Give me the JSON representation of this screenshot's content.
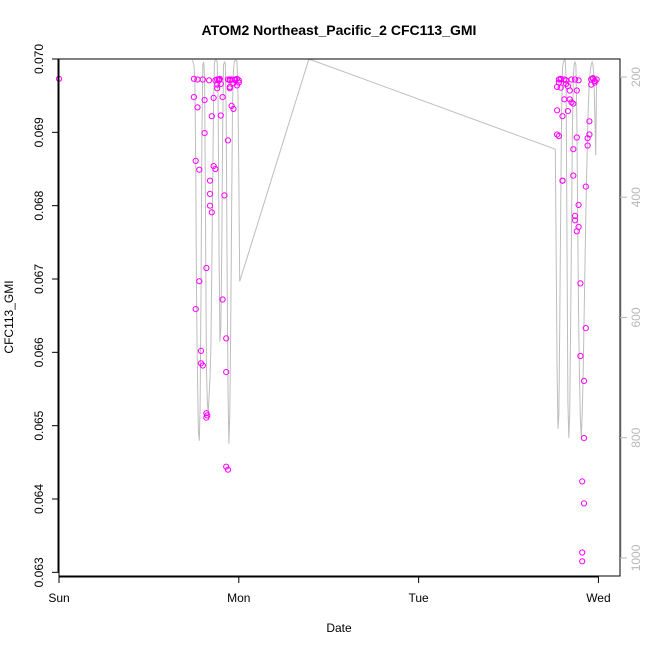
{
  "chart_data": {
    "type": "scatter",
    "title": "ATOM2 Northeast_Pacific_2 CFC113_GMI",
    "xlabel": "Date",
    "ylabel": "CFC113_GMI",
    "xlim": [
      0,
      3.12
    ],
    "ylim": [
      0.06295,
      0.07
    ],
    "x_ticks": [
      {
        "value": 0,
        "label": "Sun"
      },
      {
        "value": 1,
        "label": "Mon"
      },
      {
        "value": 2,
        "label": "Tue"
      },
      {
        "value": 3,
        "label": "Wed"
      }
    ],
    "y_ticks": [
      {
        "value": 0.063,
        "label": "0.063"
      },
      {
        "value": 0.064,
        "label": "0.064"
      },
      {
        "value": 0.065,
        "label": "0.065"
      },
      {
        "value": 0.066,
        "label": "0.066"
      },
      {
        "value": 0.067,
        "label": "0.067"
      },
      {
        "value": 0.068,
        "label": "0.068"
      },
      {
        "value": 0.069,
        "label": "0.069"
      },
      {
        "value": 0.07,
        "label": "0.070"
      }
    ],
    "y2lim": [
      1030,
      170
    ],
    "y2_ticks": [
      {
        "value": 200,
        "label": "200"
      },
      {
        "value": 400,
        "label": "400"
      },
      {
        "value": 600,
        "label": "600"
      },
      {
        "value": 800,
        "label": "800"
      },
      {
        "value": 1000,
        "label": "1000"
      }
    ],
    "colors": {
      "points": "#ff00ff",
      "pressure_line": "#bdbdbd",
      "axis": "#000000",
      "right_axis": "#b8b8b8"
    },
    "series": [
      {
        "marker": "open-circle",
        "x": [
          0.0,
          0.75,
          0.75,
          0.76,
          0.76,
          0.77,
          0.77,
          0.78,
          0.78,
          0.79,
          0.79,
          0.8,
          0.8,
          0.81,
          0.81,
          0.82,
          0.82,
          0.82,
          0.825,
          0.835,
          0.84,
          0.84,
          0.84,
          0.85,
          0.85,
          0.86,
          0.86,
          0.87,
          0.87,
          0.88,
          0.88,
          0.88,
          0.89,
          0.89,
          0.895,
          0.9,
          0.9,
          0.91,
          0.91,
          0.92,
          0.93,
          0.93,
          0.93,
          0.94,
          0.94,
          0.94,
          0.95,
          0.95,
          0.95,
          0.95,
          0.96,
          0.96,
          0.97,
          0.97,
          0.98,
          0.98,
          0.99,
          0.99,
          1.0,
          1.0,
          2.77,
          2.77,
          2.77,
          2.78,
          2.78,
          2.78,
          2.79,
          2.79,
          2.79,
          2.8,
          2.8,
          2.8,
          2.81,
          2.81,
          2.82,
          2.82,
          2.83,
          2.83,
          2.84,
          2.84,
          2.85,
          2.85,
          2.86,
          2.86,
          2.86,
          2.87,
          2.87,
          2.87,
          2.88,
          2.88,
          2.88,
          2.89,
          2.89,
          2.89,
          2.9,
          2.9,
          2.91,
          2.91,
          2.91,
          2.92,
          2.92,
          2.92,
          2.93,
          2.93,
          2.94,
          2.94,
          2.95,
          2.95,
          2.96,
          2.96,
          2.97,
          2.97,
          2.98,
          2.98,
          2.99
        ],
        "y": [
          0.06973,
          0.06973,
          0.06948,
          0.06861,
          0.06659,
          0.06972,
          0.06934,
          0.06849,
          0.06697,
          0.06602,
          0.06585,
          0.06582,
          0.06972,
          0.06944,
          0.06899,
          0.06715,
          0.06517,
          0.06511,
          0.06514,
          0.06971,
          0.06834,
          0.06816,
          0.068,
          0.06791,
          0.06922,
          0.06947,
          0.06854,
          0.0685,
          0.06971,
          0.06965,
          0.0696,
          0.06972,
          0.06971,
          0.06972,
          0.06973,
          0.06966,
          0.06923,
          0.06948,
          0.06672,
          0.06814,
          0.06573,
          0.06619,
          0.06444,
          0.0644,
          0.06889,
          0.06972,
          0.06962,
          0.06972,
          0.06971,
          0.0696,
          0.06936,
          0.06972,
          0.06967,
          0.06932,
          0.06972,
          0.06971,
          0.06964,
          0.06973,
          0.06971,
          0.06968,
          0.06962,
          0.0693,
          0.06897,
          0.06972,
          0.06968,
          0.06895,
          0.06973,
          0.06961,
          0.06972,
          0.06834,
          0.06834,
          0.06922,
          0.06945,
          0.06972,
          0.06971,
          0.06966,
          0.06963,
          0.06929,
          0.06957,
          0.06945,
          0.06941,
          0.06972,
          0.06939,
          0.06877,
          0.06841,
          0.06972,
          0.06786,
          0.0678,
          0.06765,
          0.06893,
          0.06957,
          0.06771,
          0.06801,
          0.06971,
          0.06694,
          0.06595,
          0.06424,
          0.06327,
          0.06315,
          0.06394,
          0.06483,
          0.06561,
          0.06633,
          0.06826,
          0.06882,
          0.06892,
          0.06897,
          0.06915,
          0.06965,
          0.06972,
          0.06974,
          0.06973,
          0.0697,
          0.06968,
          0.06972
        ]
      },
      {
        "marker": "line",
        "axis": "right",
        "x": [
          0.74,
          0.745,
          0.75,
          0.755,
          0.76,
          0.765,
          0.77,
          0.775,
          0.78,
          0.785,
          0.79,
          0.795,
          0.8,
          0.805,
          0.81,
          0.815,
          0.82,
          0.825,
          0.83,
          0.835,
          0.84,
          0.845,
          0.85,
          0.855,
          0.86,
          0.865,
          0.87,
          0.875,
          0.88,
          0.885,
          0.89,
          0.895,
          0.9,
          0.905,
          0.91,
          0.915,
          0.92,
          0.925,
          0.93,
          0.935,
          0.94,
          0.945,
          0.95,
          0.955,
          0.96,
          0.965,
          0.97,
          0.975,
          0.98,
          0.985,
          0.99,
          0.995,
          1.0,
          1.005,
          1.39,
          2.76,
          2.765,
          2.77,
          2.775,
          2.78,
          2.785,
          2.79,
          2.795,
          2.8,
          2.805,
          2.81,
          2.815,
          2.82,
          2.825,
          2.83,
          2.835,
          2.84,
          2.845,
          2.85,
          2.855,
          2.86,
          2.865,
          2.87,
          2.875,
          2.88,
          2.885,
          2.89,
          2.895,
          2.9,
          2.905,
          2.91,
          2.915,
          2.92,
          2.925,
          2.93,
          2.935,
          2.94,
          2.945,
          2.95,
          2.955,
          2.96,
          2.965,
          2.97,
          2.975,
          2.98,
          2.985,
          2.99
        ],
        "y": [
          172,
          175,
          180,
          200,
          340,
          580,
          700,
          790,
          805,
          750,
          560,
          300,
          180,
          175,
          200,
          430,
          680,
          740,
          760,
          730,
          700,
          650,
          520,
          380,
          240,
          175,
          172,
          172,
          175,
          240,
          480,
          640,
          620,
          500,
          300,
          180,
          175,
          178,
          260,
          520,
          720,
          810,
          760,
          620,
          430,
          250,
          190,
          175,
          172,
          172,
          175,
          220,
          360,
          540,
          170,
          320,
          500,
          690,
          785,
          760,
          600,
          420,
          260,
          185,
          175,
          172,
          172,
          200,
          480,
          740,
          800,
          760,
          620,
          450,
          290,
          200,
          180,
          175,
          180,
          260,
          440,
          600,
          700,
          770,
          800,
          760,
          700,
          610,
          520,
          430,
          360,
          290,
          240,
          205,
          190,
          180,
          175,
          180,
          200,
          260,
          330,
          200
        ]
      }
    ]
  }
}
